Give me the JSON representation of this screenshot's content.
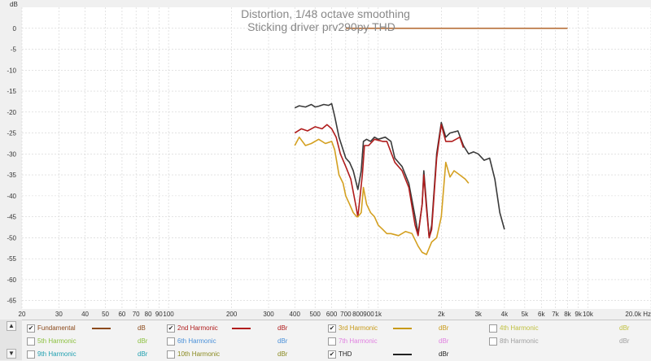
{
  "chart_data": {
    "type": "line",
    "title": "Distortion, 1/48 octave smoothing",
    "subtitle": "Sticking driver prv290py THD",
    "ylabel": "dB",
    "xlabel": "Hz",
    "x_scale": "log",
    "xlim": [
      20,
      20000
    ],
    "ylim": [
      -67,
      5
    ],
    "grid": true,
    "y_ticks": [
      0,
      -5,
      -10,
      -15,
      -20,
      -25,
      -30,
      -35,
      -40,
      -45,
      -50,
      -55,
      -60,
      -65
    ],
    "x_ticks": [
      {
        "v": 20,
        "label": "20"
      },
      {
        "v": 30,
        "label": "30"
      },
      {
        "v": 40,
        "label": "40"
      },
      {
        "v": 50,
        "label": "50"
      },
      {
        "v": 60,
        "label": "60"
      },
      {
        "v": 70,
        "label": "70"
      },
      {
        "v": 80,
        "label": "80"
      },
      {
        "v": 90,
        "label": "90"
      },
      {
        "v": 100,
        "label": "100"
      },
      {
        "v": 200,
        "label": "200"
      },
      {
        "v": 300,
        "label": "300"
      },
      {
        "v": 400,
        "label": "400"
      },
      {
        "v": 500,
        "label": "500"
      },
      {
        "v": 600,
        "label": "600"
      },
      {
        "v": 700,
        "label": "700"
      },
      {
        "v": 800,
        "label": "800"
      },
      {
        "v": 900,
        "label": "900"
      },
      {
        "v": 1000,
        "label": "1k"
      },
      {
        "v": 2000,
        "label": "2k"
      },
      {
        "v": 3000,
        "label": "3k"
      },
      {
        "v": 4000,
        "label": "4k"
      },
      {
        "v": 5000,
        "label": "5k"
      },
      {
        "v": 6000,
        "label": "6k"
      },
      {
        "v": 7000,
        "label": "7k"
      },
      {
        "v": 8000,
        "label": "8k"
      },
      {
        "v": 9000,
        "label": "9k"
      },
      {
        "v": 10000,
        "label": "10k"
      },
      {
        "v": 20000,
        "label": "20.0k Hz"
      }
    ],
    "series": [
      {
        "name": "Fundamental",
        "color": "#b8703a",
        "points": [
          [
            700,
            0
          ],
          [
            8000,
            0
          ]
        ]
      },
      {
        "name": "THD",
        "color": "#3a3a3a",
        "points": [
          [
            400,
            -19
          ],
          [
            420,
            -18.5
          ],
          [
            450,
            -18.8
          ],
          [
            480,
            -18.2
          ],
          [
            500,
            -18.8
          ],
          [
            520,
            -18.6
          ],
          [
            550,
            -18.2
          ],
          [
            580,
            -18.4
          ],
          [
            600,
            -18
          ],
          [
            620,
            -21
          ],
          [
            650,
            -26
          ],
          [
            680,
            -29
          ],
          [
            700,
            -31
          ],
          [
            730,
            -32
          ],
          [
            760,
            -34
          ],
          [
            800,
            -38.5
          ],
          [
            830,
            -34
          ],
          [
            850,
            -27
          ],
          [
            880,
            -26.5
          ],
          [
            920,
            -27
          ],
          [
            960,
            -26
          ],
          [
            1000,
            -26.5
          ],
          [
            1080,
            -26
          ],
          [
            1150,
            -27
          ],
          [
            1200,
            -31
          ],
          [
            1300,
            -33
          ],
          [
            1400,
            -37
          ],
          [
            1500,
            -45
          ],
          [
            1550,
            -49
          ],
          [
            1620,
            -42
          ],
          [
            1650,
            -34
          ],
          [
            1700,
            -42
          ],
          [
            1750,
            -50
          ],
          [
            1800,
            -47
          ],
          [
            1900,
            -30
          ],
          [
            2000,
            -22.5
          ],
          [
            2100,
            -26
          ],
          [
            2200,
            -25
          ],
          [
            2400,
            -24.5
          ],
          [
            2550,
            -28
          ],
          [
            2700,
            -30
          ],
          [
            2850,
            -29.5
          ],
          [
            3000,
            -30
          ],
          [
            3200,
            -31.5
          ],
          [
            3400,
            -31
          ],
          [
            3600,
            -36
          ],
          [
            3800,
            -44
          ],
          [
            4000,
            -48
          ]
        ]
      },
      {
        "name": "2nd Harmonic",
        "color": "#b01c1c",
        "points": [
          [
            400,
            -25
          ],
          [
            430,
            -24
          ],
          [
            460,
            -24.5
          ],
          [
            500,
            -23.5
          ],
          [
            540,
            -24
          ],
          [
            570,
            -23
          ],
          [
            600,
            -24
          ],
          [
            630,
            -26
          ],
          [
            660,
            -30
          ],
          [
            700,
            -33
          ],
          [
            740,
            -36
          ],
          [
            780,
            -42
          ],
          [
            800,
            -45
          ],
          [
            840,
            -35
          ],
          [
            860,
            -28
          ],
          [
            900,
            -28
          ],
          [
            960,
            -26.5
          ],
          [
            1050,
            -27
          ],
          [
            1100,
            -27
          ],
          [
            1200,
            -32
          ],
          [
            1300,
            -34
          ],
          [
            1400,
            -38
          ],
          [
            1500,
            -47
          ],
          [
            1550,
            -49.5
          ],
          [
            1620,
            -42
          ],
          [
            1650,
            -35
          ],
          [
            1700,
            -43
          ],
          [
            1750,
            -50
          ],
          [
            1800,
            -48
          ],
          [
            1900,
            -31
          ],
          [
            2000,
            -23
          ],
          [
            2100,
            -27
          ],
          [
            2250,
            -27
          ],
          [
            2450,
            -26
          ],
          [
            2550,
            -28.5
          ]
        ]
      },
      {
        "name": "3rd Harmonic",
        "color": "#d4a020",
        "points": [
          [
            400,
            -28
          ],
          [
            420,
            -26
          ],
          [
            450,
            -28
          ],
          [
            480,
            -27.5
          ],
          [
            520,
            -26.5
          ],
          [
            560,
            -27.5
          ],
          [
            600,
            -27
          ],
          [
            620,
            -29
          ],
          [
            650,
            -35
          ],
          [
            680,
            -37
          ],
          [
            700,
            -40
          ],
          [
            730,
            -42
          ],
          [
            760,
            -44
          ],
          [
            790,
            -45
          ],
          [
            800,
            -45
          ],
          [
            830,
            -44
          ],
          [
            850,
            -38
          ],
          [
            880,
            -42
          ],
          [
            920,
            -44
          ],
          [
            960,
            -45
          ],
          [
            1000,
            -47
          ],
          [
            1050,
            -48
          ],
          [
            1100,
            -49
          ],
          [
            1150,
            -49
          ],
          [
            1250,
            -49.5
          ],
          [
            1350,
            -48.5
          ],
          [
            1450,
            -49
          ],
          [
            1550,
            -52
          ],
          [
            1620,
            -53.5
          ],
          [
            1700,
            -54
          ],
          [
            1800,
            -51
          ],
          [
            1900,
            -50
          ],
          [
            2000,
            -45
          ],
          [
            2100,
            -32
          ],
          [
            2200,
            -35.5
          ],
          [
            2300,
            -34
          ],
          [
            2450,
            -35
          ],
          [
            2600,
            -36
          ],
          [
            2700,
            -37
          ]
        ]
      }
    ]
  },
  "legend": {
    "items": [
      {
        "label": "Fundamental",
        "unit": "dB",
        "checked": true,
        "check_mark": "✔",
        "color": "#8b4a1c"
      },
      {
        "label": "2nd Harmonic",
        "unit": "dBr",
        "checked": true,
        "check_mark": "✔",
        "color": "#b01c1c"
      },
      {
        "label": "3rd Harmonic",
        "unit": "dBr",
        "checked": true,
        "check_mark": "✔",
        "color": "#c89a18"
      },
      {
        "label": "4th Harmonic",
        "unit": "dBr",
        "checked": false,
        "check_mark": "",
        "color": "#c0c040"
      },
      {
        "label": "5th Harmonic",
        "unit": "dBr",
        "checked": false,
        "check_mark": "",
        "color": "#8cc040"
      },
      {
        "label": "6th Harmonic",
        "unit": "dBr",
        "checked": false,
        "check_mark": "",
        "color": "#4a90d9"
      },
      {
        "label": "7th Harmonic",
        "unit": "dBr",
        "checked": false,
        "check_mark": "",
        "color": "#e080e0"
      },
      {
        "label": "8th Harmonic",
        "unit": "dBr",
        "checked": false,
        "check_mark": "",
        "color": "#a0a0a0"
      },
      {
        "label": "9th Harmonic",
        "unit": "dBr",
        "checked": false,
        "check_mark": "",
        "color": "#20a0b0"
      },
      {
        "label": "10th Harmonic",
        "unit": "dBr",
        "checked": false,
        "check_mark": "",
        "color": "#8a8a20"
      },
      {
        "label": "THD",
        "unit": "dBr",
        "checked": true,
        "check_mark": "✔",
        "color": "#222222"
      }
    ],
    "up_arrow": "▲",
    "down_arrow": "▼"
  }
}
